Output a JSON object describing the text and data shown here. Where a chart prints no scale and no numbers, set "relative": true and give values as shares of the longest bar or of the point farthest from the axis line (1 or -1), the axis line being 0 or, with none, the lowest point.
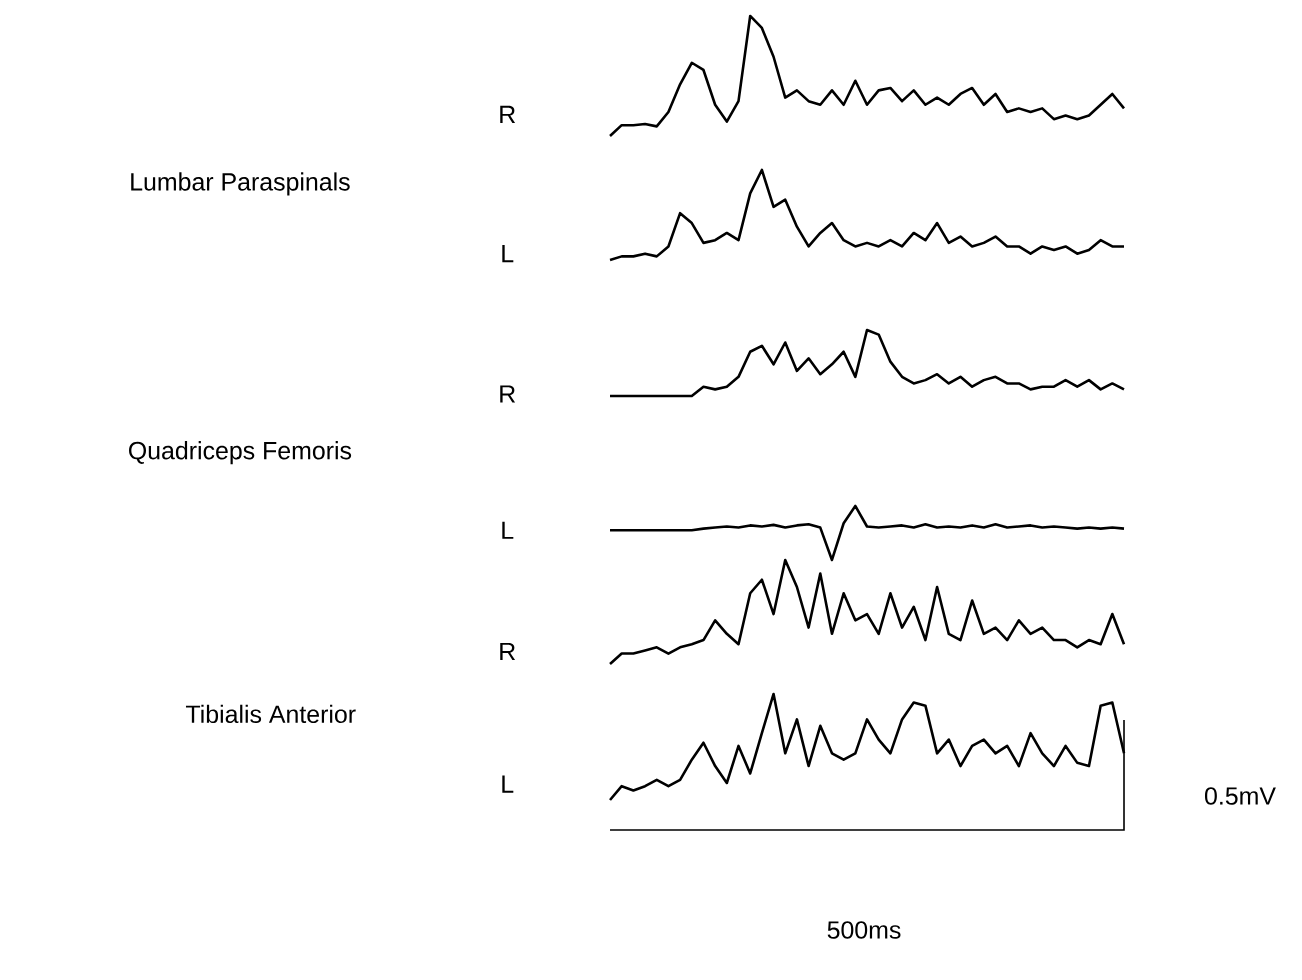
{
  "chart_data": [
    {
      "type": "line",
      "relative": true,
      "ylabel": "R",
      "color": "#000000",
      "annotations": [
        "Lumbar Paraspinals"
      ],
      "categories": [
        null,
        null,
        null,
        null,
        null,
        null,
        null,
        null,
        null,
        null,
        null,
        null,
        null,
        null,
        null,
        null,
        null,
        null,
        null,
        null,
        null,
        null,
        null,
        null,
        null,
        null,
        null,
        null,
        null,
        null,
        null,
        null,
        null,
        null,
        null,
        null,
        null,
        null,
        null,
        null,
        null,
        null,
        null,
        null,
        null
      ],
      "values": [
        0,
        0.09,
        0.09,
        0.1,
        0.08,
        0.2,
        0.43,
        0.61,
        0.55,
        0.26,
        0.12,
        0.29,
        1,
        0.9,
        0.66,
        0.32,
        0.38,
        0.29,
        0.26,
        0.38,
        0.26,
        0.46,
        0.26,
        0.38,
        0.4,
        0.29,
        0.38,
        0.26,
        0.32,
        0.26,
        0.35,
        0.4,
        0.26,
        0.35,
        0.2,
        0.23,
        0.2,
        0.23,
        0.14,
        0.17,
        0.14,
        0.17,
        0.26,
        0.35,
        0.23
      ]
    },
    {
      "type": "line",
      "relative": true,
      "ylabel": "L",
      "color": "#000000",
      "categories": [
        null,
        null,
        null,
        null,
        null,
        null,
        null,
        null,
        null,
        null,
        null,
        null,
        null,
        null,
        null,
        null,
        null,
        null,
        null,
        null,
        null,
        null,
        null,
        null,
        null,
        null,
        null,
        null,
        null,
        null,
        null,
        null,
        null,
        null,
        null,
        null,
        null,
        null,
        null,
        null,
        null,
        null,
        null,
        null,
        null
      ],
      "values": [
        0,
        0.04,
        0.04,
        0.07,
        0.04,
        0.15,
        0.52,
        0.41,
        0.19,
        0.22,
        0.3,
        0.22,
        0.74,
        1,
        0.59,
        0.67,
        0.37,
        0.15,
        0.3,
        0.41,
        0.22,
        0.15,
        0.19,
        0.15,
        0.22,
        0.15,
        0.3,
        0.22,
        0.41,
        0.19,
        0.26,
        0.15,
        0.19,
        0.26,
        0.15,
        0.15,
        0.07,
        0.15,
        0.11,
        0.15,
        0.07,
        0.11,
        0.22,
        0.15,
        0.15
      ]
    },
    {
      "type": "line",
      "relative": true,
      "ylabel": "R",
      "color": "#000000",
      "annotations": [
        "Quadriceps Femoris"
      ],
      "categories": [
        null,
        null,
        null,
        null,
        null,
        null,
        null,
        null,
        null,
        null,
        null,
        null,
        null,
        null,
        null,
        null,
        null,
        null,
        null,
        null,
        null,
        null,
        null,
        null,
        null,
        null,
        null,
        null,
        null,
        null,
        null,
        null,
        null,
        null,
        null,
        null,
        null,
        null,
        null,
        null,
        null,
        null,
        null,
        null,
        null
      ],
      "values": [
        0,
        0,
        0,
        0,
        0,
        0,
        0,
        0,
        0.14,
        0.1,
        0.14,
        0.29,
        0.67,
        0.76,
        0.48,
        0.81,
        0.38,
        0.57,
        0.33,
        0.48,
        0.67,
        0.29,
        1,
        0.93,
        0.52,
        0.29,
        0.19,
        0.24,
        0.33,
        0.19,
        0.29,
        0.14,
        0.24,
        0.29,
        0.19,
        0.19,
        0.1,
        0.14,
        0.14,
        0.24,
        0.14,
        0.24,
        0.1,
        0.19,
        0.1
      ]
    },
    {
      "type": "line",
      "relative": true,
      "ylabel": "L",
      "color": "#000000",
      "categories": [
        null,
        null,
        null,
        null,
        null,
        null,
        null,
        null,
        null,
        null,
        null,
        null,
        null,
        null,
        null,
        null,
        null,
        null,
        null,
        null,
        null,
        null,
        null,
        null,
        null,
        null,
        null,
        null,
        null,
        null,
        null,
        null,
        null,
        null,
        null,
        null,
        null,
        null,
        null,
        null,
        null,
        null,
        null,
        null,
        null
      ],
      "values": [
        0.55,
        0.55,
        0.55,
        0.55,
        0.55,
        0.55,
        0.55,
        0.55,
        0.58,
        0.6,
        0.62,
        0.6,
        0.64,
        0.62,
        0.65,
        0.6,
        0.64,
        0.66,
        0.6,
        0,
        0.68,
        1,
        0.62,
        0.6,
        0.62,
        0.64,
        0.6,
        0.66,
        0.6,
        0.62,
        0.6,
        0.64,
        0.6,
        0.66,
        0.6,
        0.62,
        0.64,
        0.6,
        0.62,
        0.6,
        0.58,
        0.6,
        0.58,
        0.6,
        0.58
      ]
    },
    {
      "type": "line",
      "relative": true,
      "ylabel": "R",
      "color": "#000000",
      "annotations": [
        "Tibialis Anterior"
      ],
      "categories": [
        null,
        null,
        null,
        null,
        null,
        null,
        null,
        null,
        null,
        null,
        null,
        null,
        null,
        null,
        null,
        null,
        null,
        null,
        null,
        null,
        null,
        null,
        null,
        null,
        null,
        null,
        null,
        null,
        null,
        null,
        null,
        null,
        null,
        null,
        null,
        null,
        null,
        null,
        null,
        null,
        null,
        null,
        null,
        null,
        null
      ],
      "values": [
        0,
        0.1,
        0.1,
        0.13,
        0.16,
        0.1,
        0.16,
        0.19,
        0.23,
        0.42,
        0.29,
        0.19,
        0.68,
        0.81,
        0.48,
        1,
        0.74,
        0.35,
        0.87,
        0.29,
        0.68,
        0.42,
        0.48,
        0.29,
        0.68,
        0.35,
        0.55,
        0.23,
        0.74,
        0.29,
        0.23,
        0.61,
        0.29,
        0.35,
        0.23,
        0.42,
        0.29,
        0.35,
        0.23,
        0.23,
        0.16,
        0.23,
        0.19,
        0.48,
        0.19
      ]
    },
    {
      "type": "line",
      "relative": true,
      "ylabel": "L",
      "color": "#000000",
      "categories": [
        null,
        null,
        null,
        null,
        null,
        null,
        null,
        null,
        null,
        null,
        null,
        null,
        null,
        null,
        null,
        null,
        null,
        null,
        null,
        null,
        null,
        null,
        null,
        null,
        null,
        null,
        null,
        null,
        null,
        null,
        null,
        null,
        null,
        null,
        null,
        null,
        null,
        null,
        null,
        null,
        null,
        null,
        null,
        null,
        null
      ],
      "values": [
        0,
        0.13,
        0.09,
        0.13,
        0.19,
        0.13,
        0.19,
        0.38,
        0.54,
        0.32,
        0.16,
        0.51,
        0.25,
        0.63,
        1,
        0.44,
        0.76,
        0.32,
        0.7,
        0.44,
        0.38,
        0.44,
        0.76,
        0.57,
        0.44,
        0.76,
        0.92,
        0.89,
        0.44,
        0.57,
        0.32,
        0.51,
        0.57,
        0.44,
        0.51,
        0.32,
        0.63,
        0.44,
        0.32,
        0.51,
        0.35,
        0.32,
        0.89,
        0.92,
        0.44
      ]
    },
    {
      "type": "other",
      "annotations": [
        "0.5mV",
        "500ms"
      ]
    }
  ]
}
